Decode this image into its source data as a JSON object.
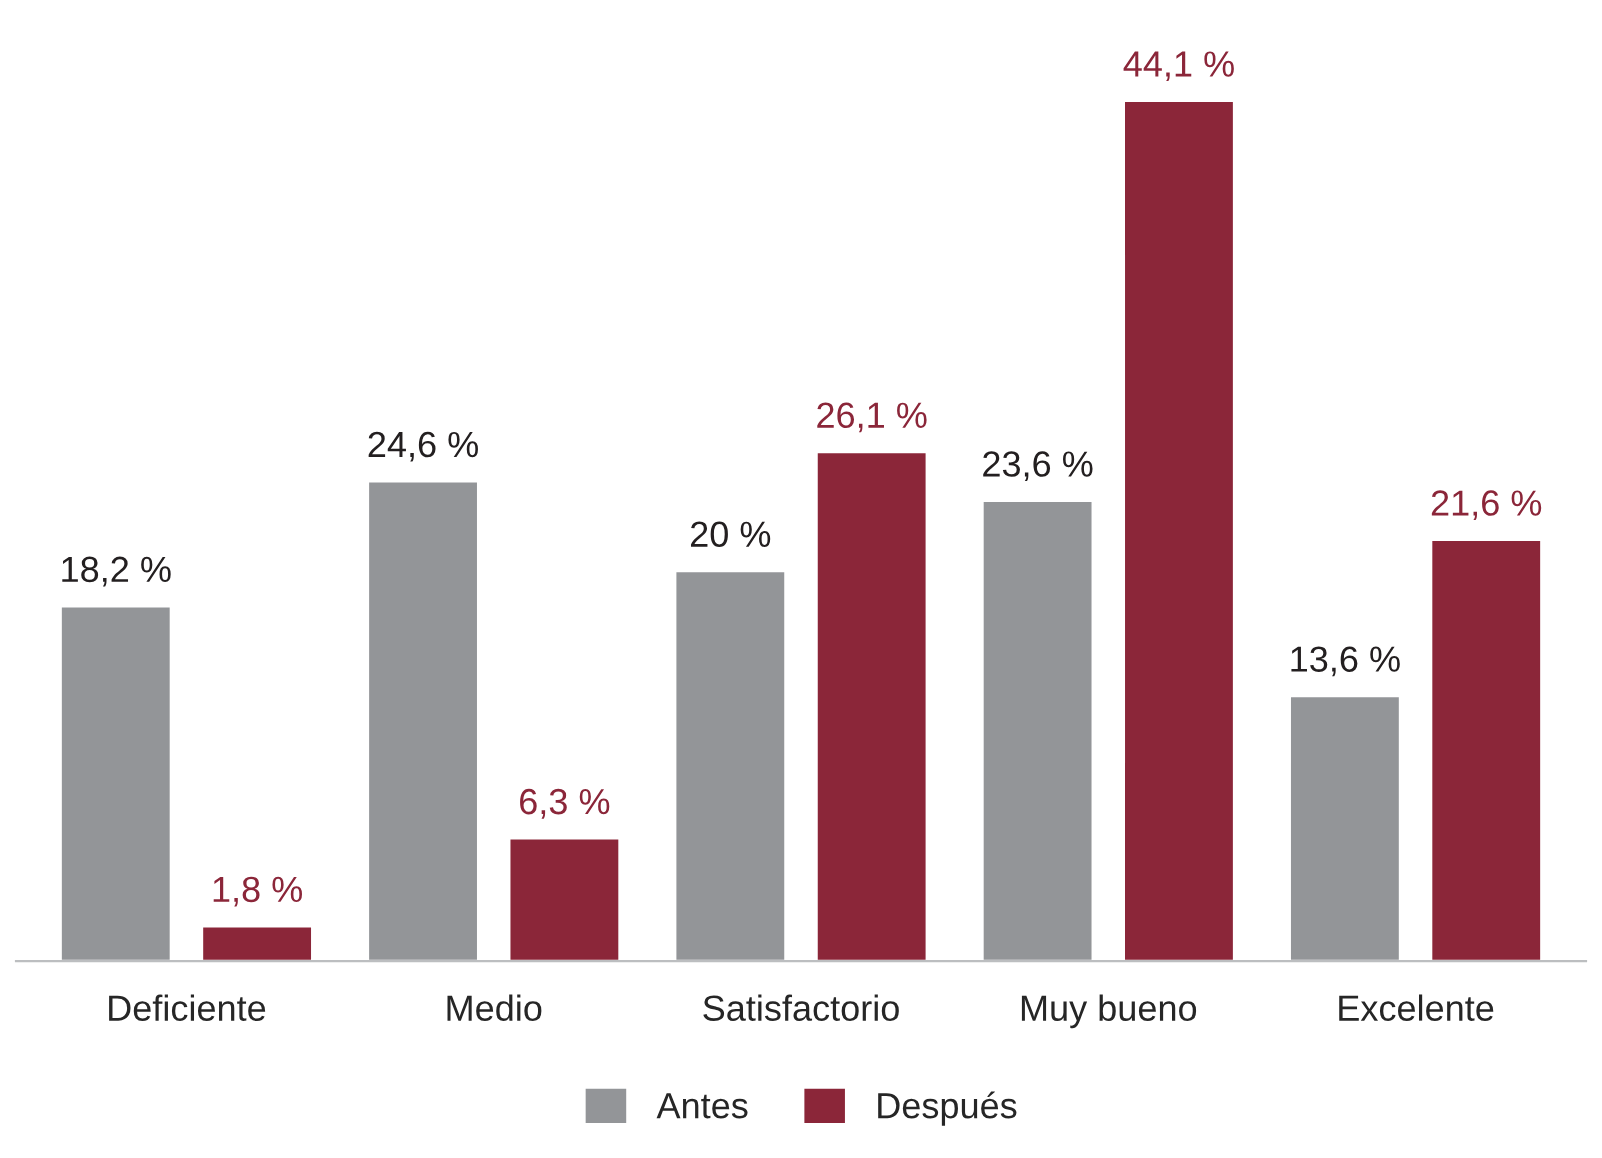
{
  "chart_data": {
    "type": "bar",
    "categories": [
      "Deficiente",
      "Medio",
      "Satisfactorio",
      "Muy bueno",
      "Excelente"
    ],
    "series": [
      {
        "name": "Antes",
        "color": "#939598",
        "values": [
          18.2,
          24.6,
          20,
          23.6,
          13.6
        ],
        "value_labels": [
          "18,2 %",
          "24,6 %",
          "20 %",
          "23,6 %",
          "13,6 %"
        ]
      },
      {
        "name": "Después",
        "color": "#8b2639",
        "values": [
          1.8,
          6.3,
          26.1,
          44.1,
          21.6
        ],
        "value_labels": [
          "1,8 %",
          "6,3 %",
          "26,1 %",
          "44,1 %",
          "21,6 %"
        ]
      }
    ],
    "legend": "bottom",
    "grid": false
  }
}
